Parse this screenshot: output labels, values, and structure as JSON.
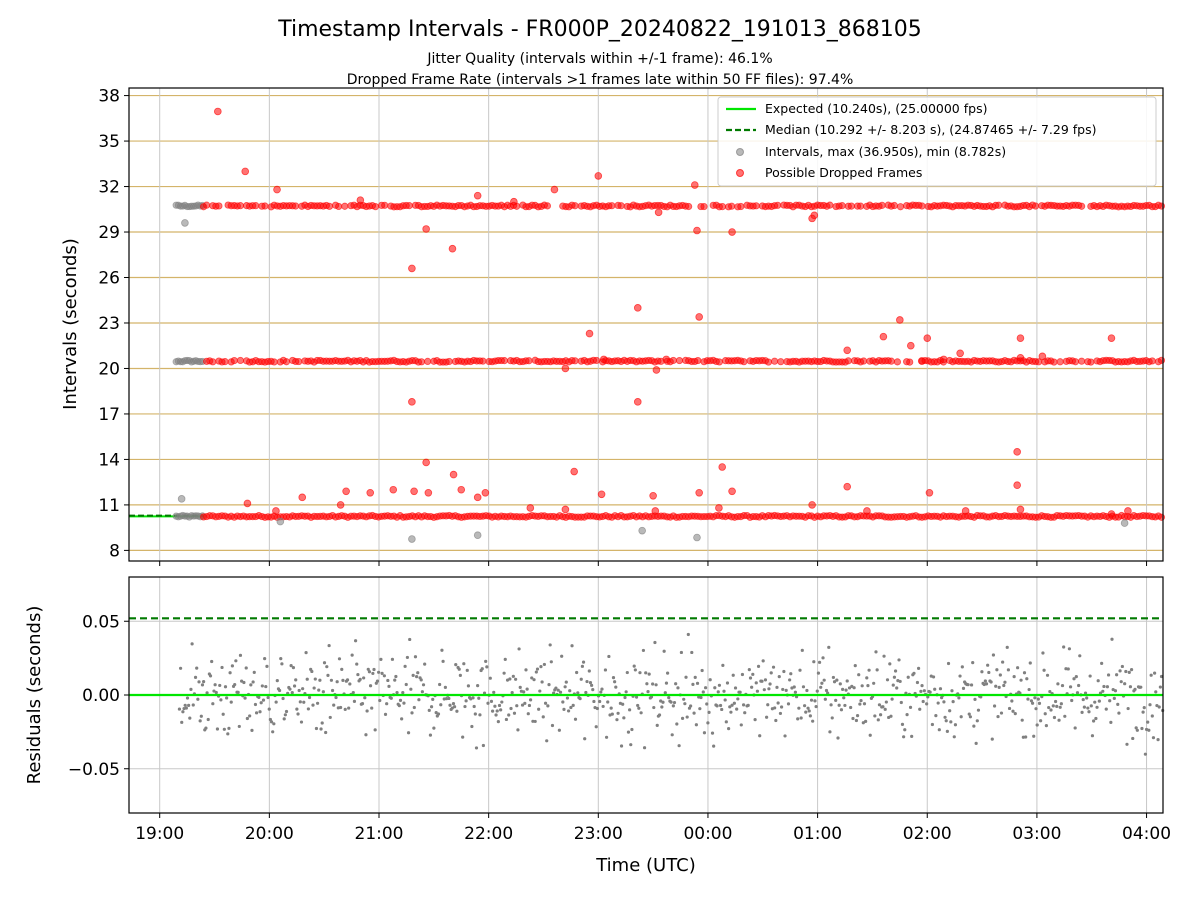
{
  "colors": {
    "expected": "#00e600",
    "median": "#007a00",
    "intervals": "#808080",
    "dropped": "#ff0000",
    "hgrid": "#d4b46a",
    "vgrid": "#c8c8c8"
  },
  "chart_data": [
    {
      "type": "scatter",
      "title": "Timestamp Intervals - FR000P_20240822_191013_868105",
      "subtitle_lines": [
        "Jitter Quality (intervals within +/-1 frame): 46.1%",
        "Dropped Frame Rate (intervals >1 frames late within 50 FF files): 97.4%"
      ],
      "xlabel": "",
      "ylabel": "Intervals (seconds)",
      "x_unit": "hours since 19:00 UTC",
      "xlim": [
        -0.28,
        9.15
      ],
      "ylim": [
        7.3,
        38.5
      ],
      "yticks": [
        8,
        11,
        14,
        17,
        20,
        23,
        26,
        29,
        32,
        35,
        38
      ],
      "grid": true,
      "legend_position": "top-right",
      "legend": [
        "Expected (10.240s), (25.00000 fps)",
        "Median (10.292 +/- 8.203 s), (24.87465 +/- 7.29 fps)",
        "Intervals, max (36.950s), min (8.782s)",
        "Possible Dropped Frames"
      ],
      "expected_line": 10.24,
      "median_line": 10.292,
      "bands": [
        {
          "series": "intervals",
          "y": 10.24,
          "x_range": [
            0.15,
            0.4
          ]
        },
        {
          "series": "intervals",
          "y": 20.48,
          "x_range": [
            0.15,
            0.4
          ]
        },
        {
          "series": "intervals",
          "y": 30.72,
          "x_range": [
            0.15,
            0.4
          ]
        },
        {
          "series": "dropped",
          "y": 10.24,
          "x_range": [
            0.4,
            9.15
          ]
        },
        {
          "series": "dropped",
          "y": 20.48,
          "x_range": [
            0.4,
            9.15
          ]
        },
        {
          "series": "dropped",
          "y": 30.72,
          "x_range": [
            0.4,
            9.15
          ]
        }
      ],
      "series": [
        {
          "name": "Intervals, max (36.950s), min (8.782s)",
          "points": [
            [
              0.2,
              11.4
            ],
            [
              0.23,
              29.6
            ],
            [
              1.1,
              9.9
            ],
            [
              2.3,
              8.75
            ],
            [
              2.9,
              9.0
            ],
            [
              4.4,
              9.3
            ],
            [
              4.9,
              8.85
            ],
            [
              8.8,
              9.8
            ]
          ]
        },
        {
          "name": "Possible Dropped Frames",
          "points": [
            [
              0.53,
              36.95
            ],
            [
              0.78,
              33.0
            ],
            [
              0.8,
              11.1
            ],
            [
              1.06,
              10.6
            ],
            [
              1.07,
              31.8
            ],
            [
              1.3,
              11.5
            ],
            [
              1.65,
              11.0
            ],
            [
              1.7,
              11.9
            ],
            [
              1.92,
              11.8
            ],
            [
              1.83,
              31.1
            ],
            [
              2.13,
              12.0
            ],
            [
              2.3,
              26.6
            ],
            [
              2.3,
              17.8
            ],
            [
              2.32,
              11.9
            ],
            [
              2.43,
              29.2
            ],
            [
              2.43,
              13.8
            ],
            [
              2.45,
              11.8
            ],
            [
              2.67,
              27.9
            ],
            [
              2.68,
              13.0
            ],
            [
              2.75,
              12.0
            ],
            [
              2.9,
              31.4
            ],
            [
              2.9,
              11.5
            ],
            [
              2.97,
              11.8
            ],
            [
              3.23,
              31.0
            ],
            [
              3.38,
              10.8
            ],
            [
              3.6,
              31.8
            ],
            [
              3.7,
              20.0
            ],
            [
              3.7,
              10.7
            ],
            [
              3.78,
              13.2
            ],
            [
              3.92,
              22.3
            ],
            [
              4.0,
              32.7
            ],
            [
              4.03,
              11.7
            ],
            [
              4.05,
              20.6
            ],
            [
              4.36,
              24.0
            ],
            [
              4.36,
              17.8
            ],
            [
              4.5,
              11.6
            ],
            [
              4.52,
              10.6
            ],
            [
              4.53,
              19.9
            ],
            [
              4.55,
              30.3
            ],
            [
              4.62,
              20.6
            ],
            [
              4.88,
              32.1
            ],
            [
              4.9,
              29.1
            ],
            [
              4.92,
              23.4
            ],
            [
              4.92,
              11.8
            ],
            [
              5.1,
              10.8
            ],
            [
              5.13,
              13.5
            ],
            [
              5.22,
              29.0
            ],
            [
              5.22,
              11.9
            ],
            [
              5.95,
              11.0
            ],
            [
              5.95,
              29.9
            ],
            [
              5.97,
              30.1
            ],
            [
              6.27,
              21.2
            ],
            [
              6.27,
              12.2
            ],
            [
              6.45,
              10.6
            ],
            [
              6.6,
              22.1
            ],
            [
              6.75,
              23.2
            ],
            [
              6.85,
              21.5
            ],
            [
              6.95,
              20.5
            ],
            [
              7.0,
              22.0
            ],
            [
              7.02,
              11.8
            ],
            [
              7.15,
              20.6
            ],
            [
              7.3,
              21.0
            ],
            [
              7.35,
              10.6
            ],
            [
              7.82,
              14.5
            ],
            [
              7.82,
              12.3
            ],
            [
              7.85,
              22.0
            ],
            [
              7.85,
              10.7
            ],
            [
              7.85,
              20.7
            ],
            [
              8.05,
              20.8
            ],
            [
              8.68,
              22.0
            ],
            [
              8.68,
              10.4
            ],
            [
              8.83,
              10.6
            ]
          ]
        }
      ]
    },
    {
      "type": "scatter",
      "title": "",
      "xlabel": "Time (UTC)",
      "ylabel": "Residuals (seconds)",
      "x_unit": "hours since 19:00 UTC",
      "xlim": [
        -0.28,
        9.15
      ],
      "ylim": [
        -0.08,
        0.08
      ],
      "yticks": [
        -0.05,
        0.0,
        0.05
      ],
      "ytick_labels": [
        "−0.05",
        "0.00",
        "0.05"
      ],
      "xticks": [
        0,
        1,
        2,
        3,
        4,
        5,
        6,
        7,
        8,
        9
      ],
      "xtick_labels": [
        "19:00",
        "20:00",
        "21:00",
        "22:00",
        "23:00",
        "00:00",
        "01:00",
        "02:00",
        "03:00",
        "04:00"
      ],
      "expected_line": 0.0,
      "median_line": 0.052,
      "residual_range": [
        -0.08,
        0.08
      ],
      "series": [
        {
          "name": "Residuals",
          "x_range": [
            0.18,
            9.15
          ],
          "spread_sd": 0.025
        }
      ],
      "grid": true
    }
  ]
}
